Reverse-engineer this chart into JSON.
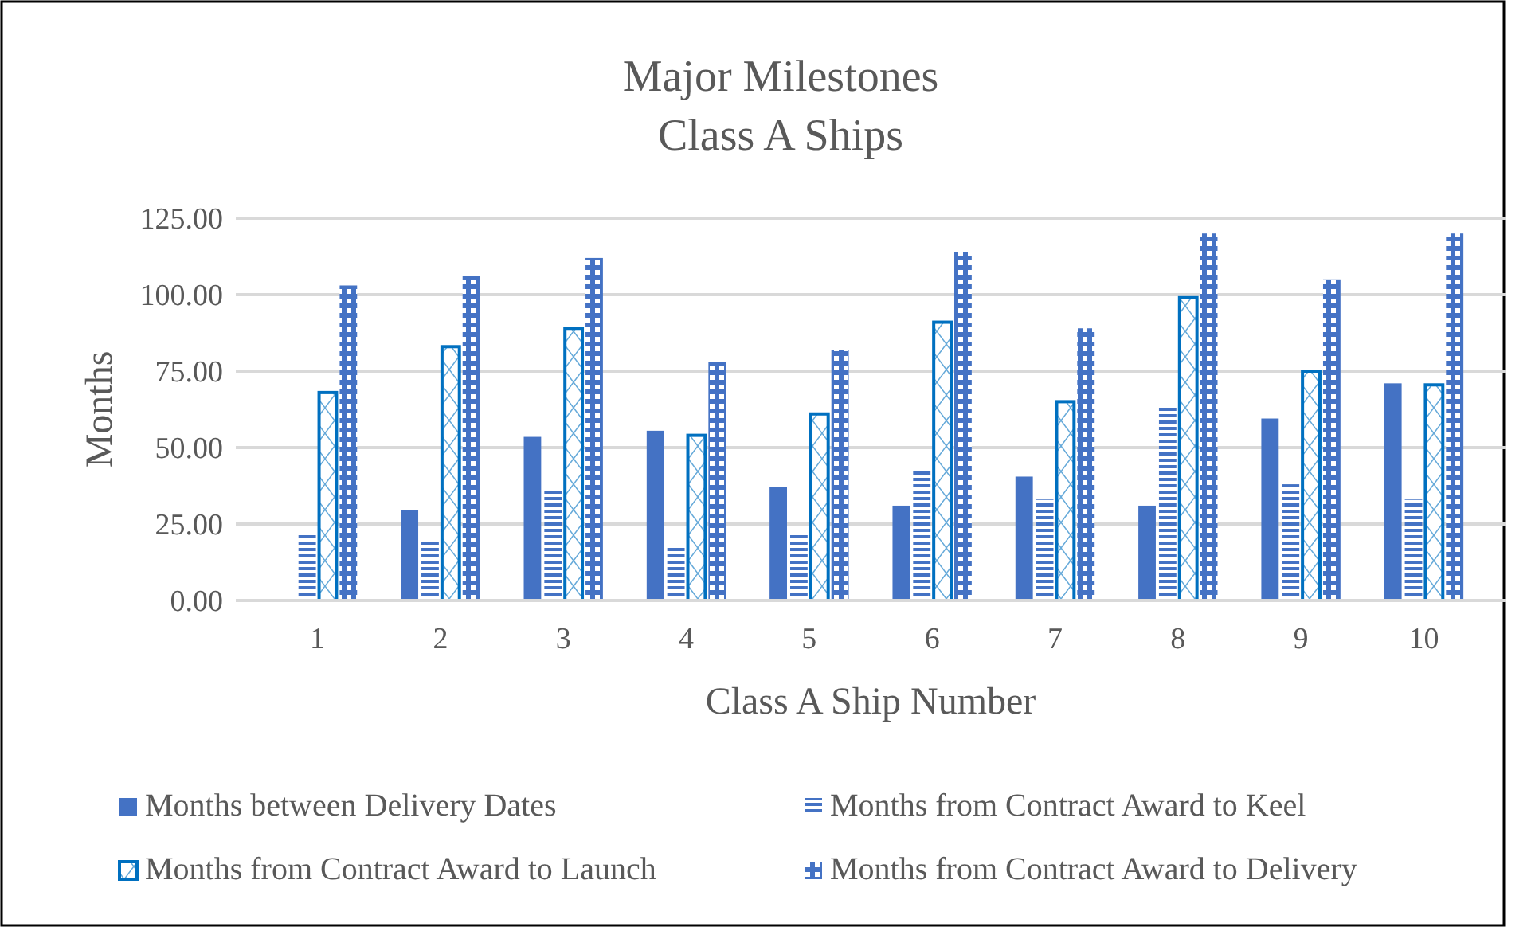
{
  "chart_data": {
    "type": "bar",
    "title": "Major Milestones",
    "subtitle": "Class A Ships",
    "xlabel": "Class A Ship Number",
    "ylabel": "Months",
    "categories": [
      "1",
      "2",
      "3",
      "4",
      "5",
      "6",
      "7",
      "8",
      "9",
      "10"
    ],
    "series": [
      {
        "name": "Months between Delivery Dates",
        "color": "#4472c4",
        "values": [
          null,
          29.5,
          53.5,
          55.5,
          37,
          31,
          40.5,
          31,
          59.5,
          71
        ]
      },
      {
        "name": "Months from Contract Award to Keel",
        "color": "#4472c4",
        "values": [
          22,
          20.5,
          36,
          18,
          22,
          43,
          33,
          64,
          38,
          33
        ]
      },
      {
        "name": "Months from Contract Award to Launch",
        "color": "#0070c0",
        "values": [
          68,
          83,
          89,
          54,
          61,
          91,
          65,
          99,
          75,
          70.5
        ]
      },
      {
        "name": "Months from Contract Award to Delivery",
        "color": "#4472c4",
        "values": [
          103,
          106,
          112,
          78,
          82,
          114,
          89,
          120,
          105,
          120
        ]
      }
    ],
    "ylim": [
      0,
      125
    ],
    "yticks": [
      {
        "value": 0,
        "label": "0.00"
      },
      {
        "value": 25,
        "label": "25.00"
      },
      {
        "value": 50,
        "label": "50.00"
      },
      {
        "value": 75,
        "label": "75.00"
      },
      {
        "value": 100,
        "label": "100.00"
      },
      {
        "value": 125,
        "label": "125.00"
      }
    ],
    "grid": "y",
    "legend": "bottom"
  }
}
